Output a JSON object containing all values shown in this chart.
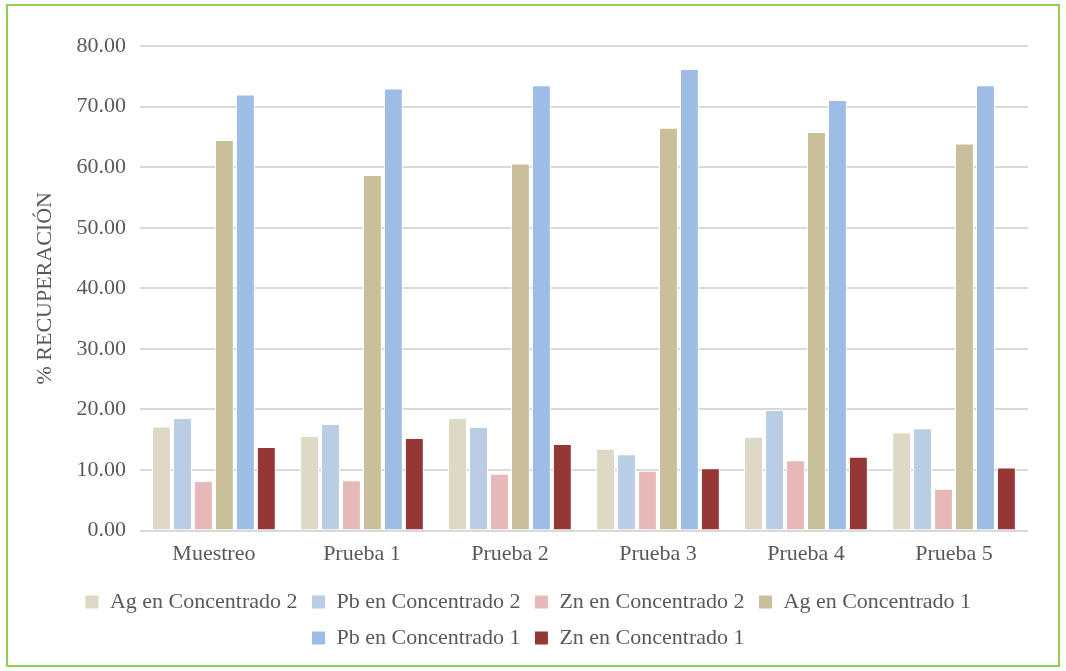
{
  "chart_data": {
    "type": "bar",
    "ylabel": "% RECUPERACIÓN",
    "categories": [
      "Muestreo",
      "Prueba 1",
      "Prueba 2",
      "Prueba 3",
      "Prueba 4",
      "Prueba 5"
    ],
    "series": [
      {
        "name": "Ag en Concentrado 2",
        "color": "#ddd9c4",
        "values": [
          17.2,
          15.6,
          18.6,
          13.5,
          15.5,
          16.2
        ]
      },
      {
        "name": "Pb en Concentrado 2",
        "color": "#b9cde5",
        "values": [
          18.6,
          17.6,
          17.1,
          12.6,
          19.9,
          16.9
        ]
      },
      {
        "name": "Zn en Concentrado 2",
        "color": "#e6b9b8",
        "values": [
          8.2,
          8.3,
          9.4,
          9.9,
          11.6,
          6.9
        ]
      },
      {
        "name": "Ag en Concentrado 1",
        "color": "#c9bf9a",
        "values": [
          64.5,
          58.7,
          60.6,
          66.5,
          65.8,
          63.9
        ]
      },
      {
        "name": "Pb en Concentrado 1",
        "color": "#9dbde6",
        "values": [
          72.0,
          73.0,
          73.5,
          76.2,
          71.1,
          73.5
        ]
      },
      {
        "name": "Zn en Concentrado 1",
        "color": "#953735",
        "values": [
          13.8,
          15.3,
          14.3,
          10.3,
          12.2,
          10.4
        ]
      }
    ],
    "ylim": [
      0,
      80
    ],
    "yticks": [
      {
        "value": 0,
        "label": "0.00"
      },
      {
        "value": 10,
        "label": "10.00"
      },
      {
        "value": 20,
        "label": "20.00"
      },
      {
        "value": 30,
        "label": "30.00"
      },
      {
        "value": 40,
        "label": "40.00"
      },
      {
        "value": 50,
        "label": "50.00"
      },
      {
        "value": 60,
        "label": "60.00"
      },
      {
        "value": 70,
        "label": "70.00"
      },
      {
        "value": 80,
        "label": "80.00"
      }
    ],
    "grid": "y",
    "legend": "bottom"
  }
}
